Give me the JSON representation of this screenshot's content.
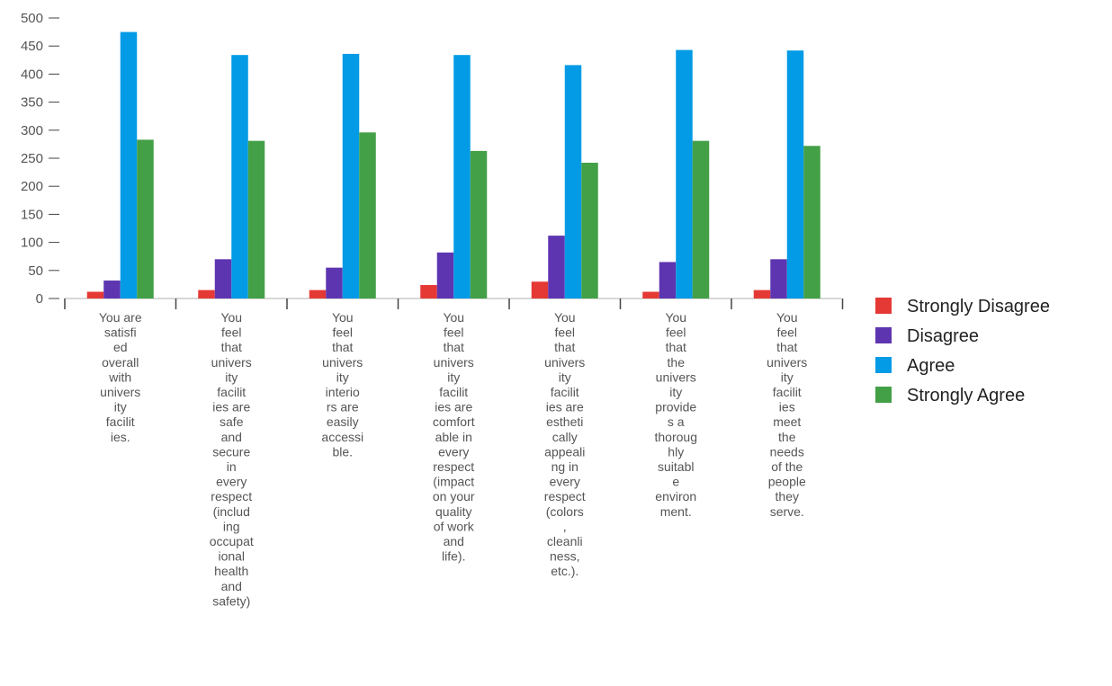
{
  "chart_data": {
    "type": "bar",
    "title": "",
    "xlabel": "",
    "ylabel": "",
    "ylim": [
      0,
      500
    ],
    "yticks": [
      0,
      50,
      100,
      150,
      200,
      250,
      300,
      350,
      400,
      450,
      500
    ],
    "grid": false,
    "legend_position": "right",
    "categories": [
      "You are satisfied overall with university facilities.",
      "You feel that university facilities are safe and secure in every respect (including occupational health and safety)",
      "You feel that university interiors are easily accessible.",
      "You feel that university facilities are comfortable in every respect (impact on your quality of work and life).",
      "You feel that university facilities are esthetically appealing in every respect (colors, cleanliness, etc.).",
      "You feel that the university provides a thoroughly suitable environment.",
      "You feel that university facilities meet the needs of the people they serve."
    ],
    "category_wrapped_lines": [
      [
        "You are",
        "satisfi",
        "ed",
        "overall",
        "with",
        "univers",
        "ity",
        "facilit",
        "ies."
      ],
      [
        "You",
        "feel",
        "that",
        "univers",
        "ity",
        "facilit",
        "ies are",
        "safe",
        "and",
        "secure",
        "in",
        "every",
        "respect",
        "(includ",
        "ing",
        "occupat",
        "ional",
        "health",
        "and",
        "safety)"
      ],
      [
        "You",
        "feel",
        "that",
        "univers",
        "ity",
        "interio",
        "rs are",
        "easily",
        "accessi",
        "ble."
      ],
      [
        "You",
        "feel",
        "that",
        "univers",
        "ity",
        "facilit",
        "ies are",
        "comfort",
        "able in",
        "every",
        "respect",
        "(impact",
        "on your",
        "quality",
        "of work",
        "and",
        "life)."
      ],
      [
        "You",
        "feel",
        "that",
        "univers",
        "ity",
        "facilit",
        "ies are",
        "estheti",
        "cally",
        "appeali",
        "ng in",
        "every",
        "respect",
        "(colors",
        ",",
        "cleanli",
        "ness,",
        "etc.)."
      ],
      [
        "You",
        "feel",
        "that",
        "the",
        "univers",
        "ity",
        "provide",
        "s a",
        "thoroug",
        "hly",
        "suitabl",
        "e",
        "environ",
        "ment."
      ],
      [
        "You",
        "feel",
        "that",
        "univers",
        "ity",
        "facilit",
        "ies",
        "meet",
        "the",
        "needs",
        "of the",
        "people",
        "they",
        "serve."
      ]
    ],
    "series": [
      {
        "name": "Strongly Disagree",
        "color": "#e53935",
        "values": [
          12,
          15,
          15,
          24,
          30,
          12,
          15
        ]
      },
      {
        "name": "Disagree",
        "color": "#5e35b1",
        "values": [
          32,
          70,
          55,
          82,
          112,
          65,
          70
        ]
      },
      {
        "name": "Agree",
        "color": "#039be5",
        "values": [
          475,
          434,
          436,
          434,
          416,
          443,
          442
        ]
      },
      {
        "name": "Strongly Agree",
        "color": "#43a047",
        "values": [
          283,
          281,
          296,
          263,
          242,
          281,
          272
        ]
      }
    ]
  }
}
